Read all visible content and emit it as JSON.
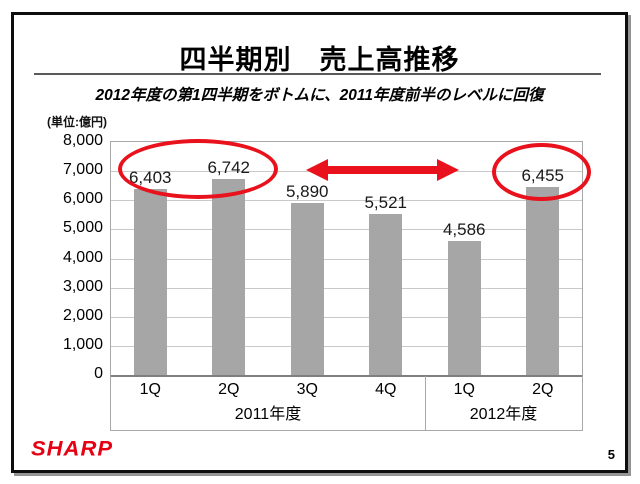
{
  "slide": {
    "title": "四半期別　売上高推移",
    "subtitle": "2012年度の第1四半期をボトムに、2011年度前半のレベルに回復",
    "unit_label": "(単位:億円)",
    "logo_text": "SHARP",
    "page_number": "5"
  },
  "colors": {
    "bar": "#a6a6a6",
    "annotation_red": "#e8111c",
    "logo_red": "#e60012",
    "gridline": "#c9c9c9",
    "axis": "#7f7f7f"
  },
  "chart_data": {
    "type": "bar",
    "title": "四半期別 売上高推移",
    "unit": "億円",
    "categories": [
      "1Q",
      "2Q",
      "3Q",
      "4Q",
      "1Q",
      "2Q"
    ],
    "group_labels": [
      {
        "label": "2011年度",
        "span": 4
      },
      {
        "label": "2012年度",
        "span": 2
      }
    ],
    "values": [
      6403,
      6742,
      5890,
      5521,
      4586,
      6455
    ],
    "value_labels": [
      "6,403",
      "6,742",
      "5,890",
      "5,521",
      "4,586",
      "6,455"
    ],
    "ylim": [
      0,
      8000
    ],
    "ytick_step": 1000,
    "yticks": [
      {
        "v": 8000,
        "label": "8,000"
      },
      {
        "v": 7000,
        "label": "7,000"
      },
      {
        "v": 6000,
        "label": "6,000"
      },
      {
        "v": 5000,
        "label": "5,000"
      },
      {
        "v": 4000,
        "label": "4,000"
      },
      {
        "v": 3000,
        "label": "3,000"
      },
      {
        "v": 2000,
        "label": "2,000"
      },
      {
        "v": 1000,
        "label": "1,000"
      },
      {
        "v": 0,
        "label": "0"
      }
    ],
    "grid": true,
    "legend": null,
    "annotations": [
      {
        "type": "ellipse",
        "color": "#e8111c",
        "around": "2011年度 1Q-2Q bars (6,403 / 6,742)"
      },
      {
        "type": "ellipse",
        "color": "#e8111c",
        "around": "2012年度 2Q bar (6,455)"
      },
      {
        "type": "double-arrow",
        "color": "#e8111c",
        "between": "2011年度前半 and 2012年度 2Q"
      }
    ]
  }
}
